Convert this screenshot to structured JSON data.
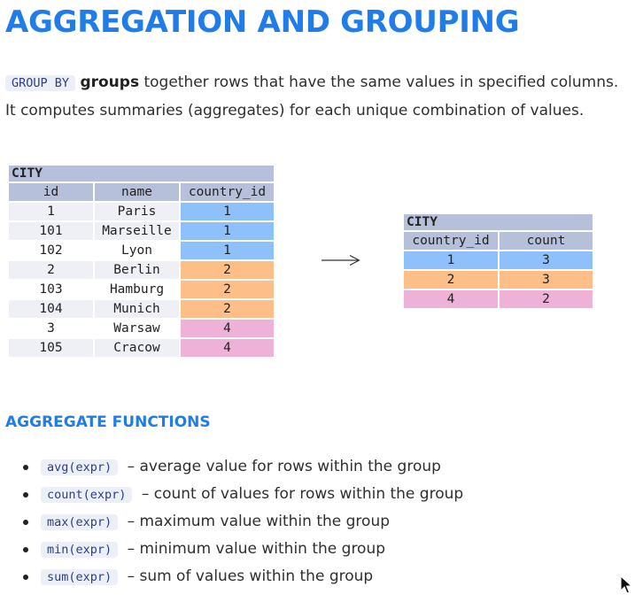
{
  "title": "AGGREGATION AND GROUPING",
  "intro": {
    "code": "GROUP BY",
    "bold": "groups",
    "text": " together rows that have the same values in specified columns. It computes summaries (aggregates) for each unique combination of values."
  },
  "source_table": {
    "name": "CITY",
    "columns": [
      "id",
      "name",
      "country_id"
    ],
    "rows": [
      {
        "id": "1",
        "name": "Paris",
        "country_id": "1",
        "color": "#8ec1fb"
      },
      {
        "id": "101",
        "name": "Marseille",
        "country_id": "1",
        "color": "#8ec1fb"
      },
      {
        "id": "102",
        "name": "Lyon",
        "country_id": "1",
        "color": "#8ec1fb"
      },
      {
        "id": "2",
        "name": "Berlin",
        "country_id": "2",
        "color": "#fdbf87"
      },
      {
        "id": "103",
        "name": "Hamburg",
        "country_id": "2",
        "color": "#fdbf87"
      },
      {
        "id": "104",
        "name": "Munich",
        "country_id": "2",
        "color": "#fdbf87"
      },
      {
        "id": "3",
        "name": "Warsaw",
        "country_id": "4",
        "color": "#eeb1d8"
      },
      {
        "id": "105",
        "name": "Cracow",
        "country_id": "4",
        "color": "#eeb1d8"
      }
    ]
  },
  "result_table": {
    "name": "CITY",
    "columns": [
      "country_id",
      "count"
    ],
    "rows": [
      {
        "country_id": "1",
        "count": "3",
        "color": "#8ec1fb"
      },
      {
        "country_id": "2",
        "count": "3",
        "color": "#fdbf87"
      },
      {
        "country_id": "4",
        "count": "2",
        "color": "#eeb1d8"
      }
    ]
  },
  "aggregate": {
    "heading": "AGGREGATE FUNCTIONS",
    "items": [
      {
        "code": "avg(expr)",
        "desc": "– average value for rows within the group"
      },
      {
        "code": "count(expr)",
        "desc": "– count of values for rows within the group"
      },
      {
        "code": "max(expr)",
        "desc": "– maximum value within the group"
      },
      {
        "code": "min(expr)",
        "desc": "– minimum value within the group"
      },
      {
        "code": "sum(expr)",
        "desc": "– sum of values within the group"
      }
    ]
  },
  "colors": {
    "accent": "#1f7ce8",
    "header": "#b7c0da",
    "group_1": "#8ec1fb",
    "group_2": "#fdbf87",
    "group_4": "#eeb1d8"
  }
}
